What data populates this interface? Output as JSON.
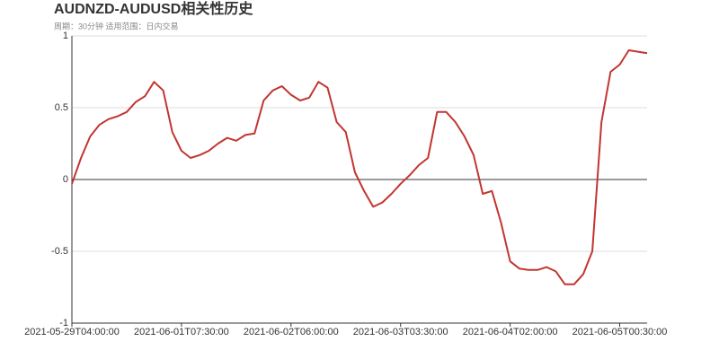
{
  "chart_data": {
    "type": "line",
    "title": "AUDNZD-AUDUSD相关性历史",
    "subtitle": "周期：30分钟 适用范围：日内交易",
    "categories": [
      "2021-05-29T04:00:00",
      null,
      null,
      null,
      null,
      null,
      null,
      null,
      null,
      null,
      null,
      null,
      "2021-06-01T07:30:00",
      null,
      null,
      null,
      null,
      null,
      null,
      null,
      null,
      null,
      null,
      null,
      "2021-06-02T06:00:00",
      null,
      null,
      null,
      null,
      null,
      null,
      null,
      null,
      null,
      null,
      null,
      "2021-06-03T03:30:00",
      null,
      null,
      null,
      null,
      null,
      null,
      null,
      null,
      null,
      null,
      null,
      "2021-06-04T02:00:00",
      null,
      null,
      null,
      null,
      null,
      null,
      null,
      null,
      null,
      null,
      null,
      "2021-06-05T00:30:00",
      null,
      null,
      null
    ],
    "series": [
      {
        "color": "#c23531",
        "values": [
          -0.03,
          0.15,
          0.3,
          0.38,
          0.42,
          0.44,
          0.47,
          0.54,
          0.58,
          0.68,
          0.62,
          0.33,
          0.2,
          0.15,
          0.17,
          0.2,
          0.25,
          0.29,
          0.27,
          0.31,
          0.32,
          0.55,
          0.62,
          0.65,
          0.59,
          0.55,
          0.57,
          0.68,
          0.64,
          0.4,
          0.33,
          0.05,
          -0.08,
          -0.19,
          -0.16,
          -0.1,
          -0.03,
          0.03,
          0.1,
          0.15,
          0.47,
          0.47,
          0.4,
          0.3,
          0.17,
          -0.1,
          -0.08,
          -0.3,
          -0.57,
          -0.62,
          -0.63,
          -0.63,
          -0.61,
          -0.64,
          -0.73,
          -0.73,
          -0.66,
          -0.5,
          0.4,
          0.75,
          0.8,
          0.9,
          0.89,
          0.88
        ]
      }
    ],
    "ylim": [
      -1,
      1
    ],
    "yticks": [
      -1,
      -0.5,
      0,
      0.5,
      1
    ],
    "grid": true
  }
}
